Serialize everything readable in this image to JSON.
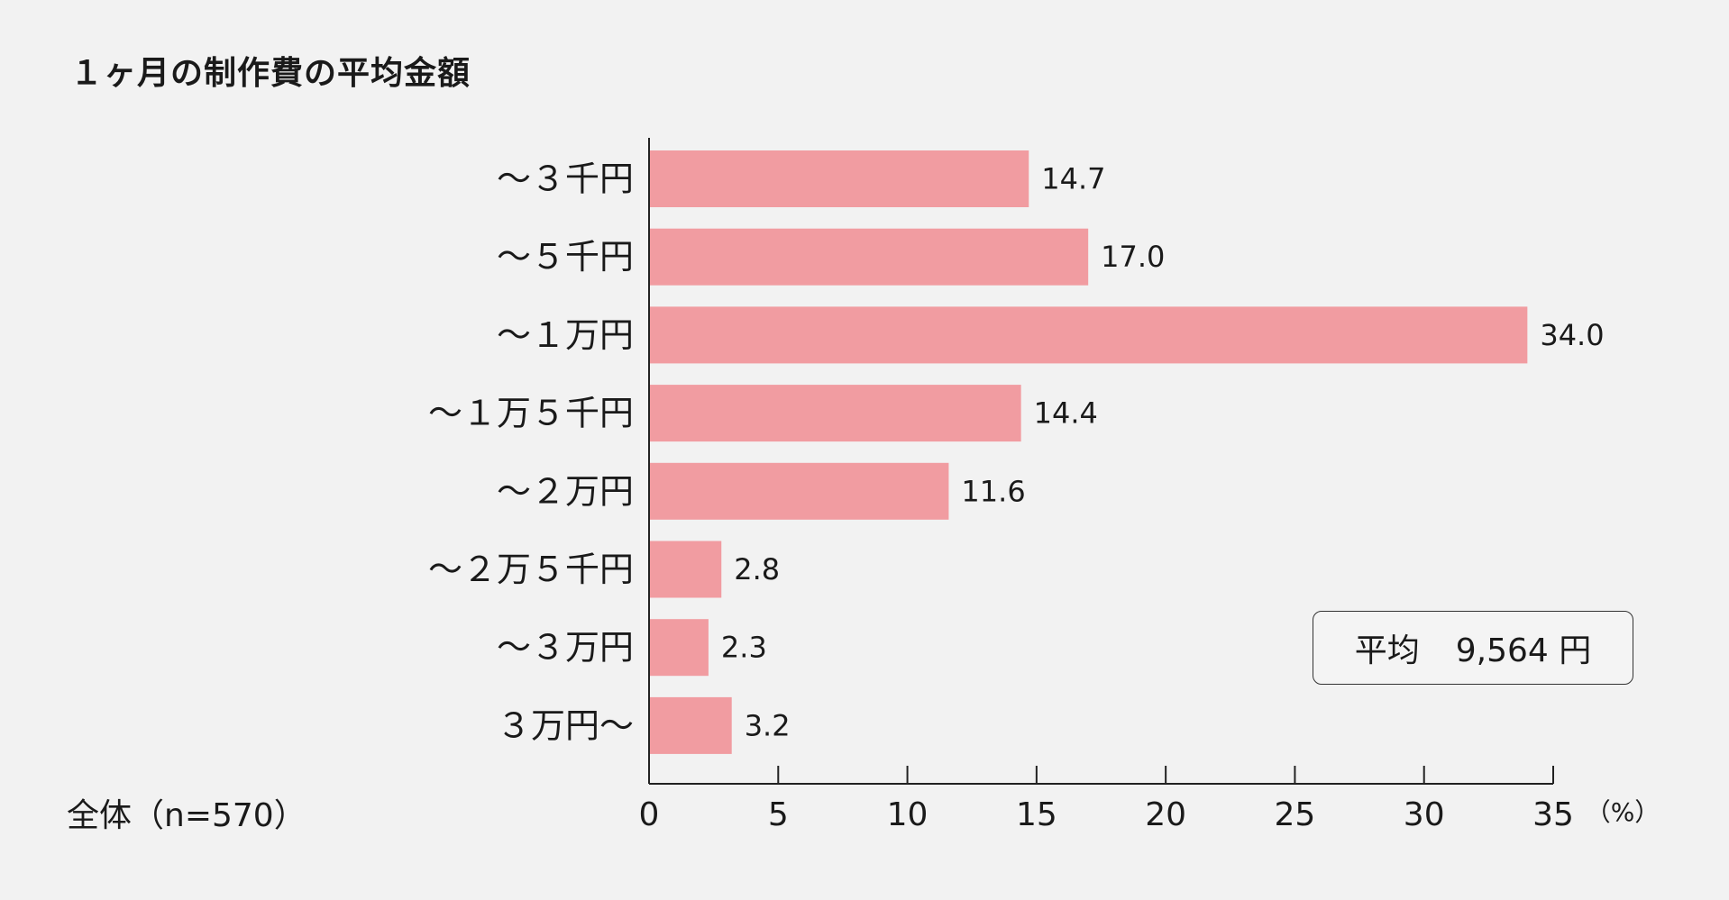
{
  "title": "１ヶ月の制作費の平均金額",
  "sample": "全体（n=570）",
  "average": {
    "label": "平均",
    "value": "9,564 円"
  },
  "chart_data": {
    "type": "bar",
    "orientation": "horizontal",
    "categories": [
      "～３千円",
      "～５千円",
      "～１万円",
      "～１万５千円",
      "～２万円",
      "～２万５千円",
      "～３万円",
      "３万円～"
    ],
    "values": [
      14.7,
      17.0,
      34.0,
      14.4,
      11.6,
      2.8,
      2.3,
      3.2
    ],
    "value_labels": [
      "14.7",
      "17.0",
      "34.0",
      "14.4",
      "11.6",
      "2.8",
      "2.3",
      "3.2"
    ],
    "xlim": [
      0,
      35
    ],
    "xticks": [
      0,
      5,
      10,
      15,
      20,
      25,
      30,
      35
    ],
    "xunit": "（%）",
    "bar_color": "#f19ca1",
    "grid": false
  }
}
